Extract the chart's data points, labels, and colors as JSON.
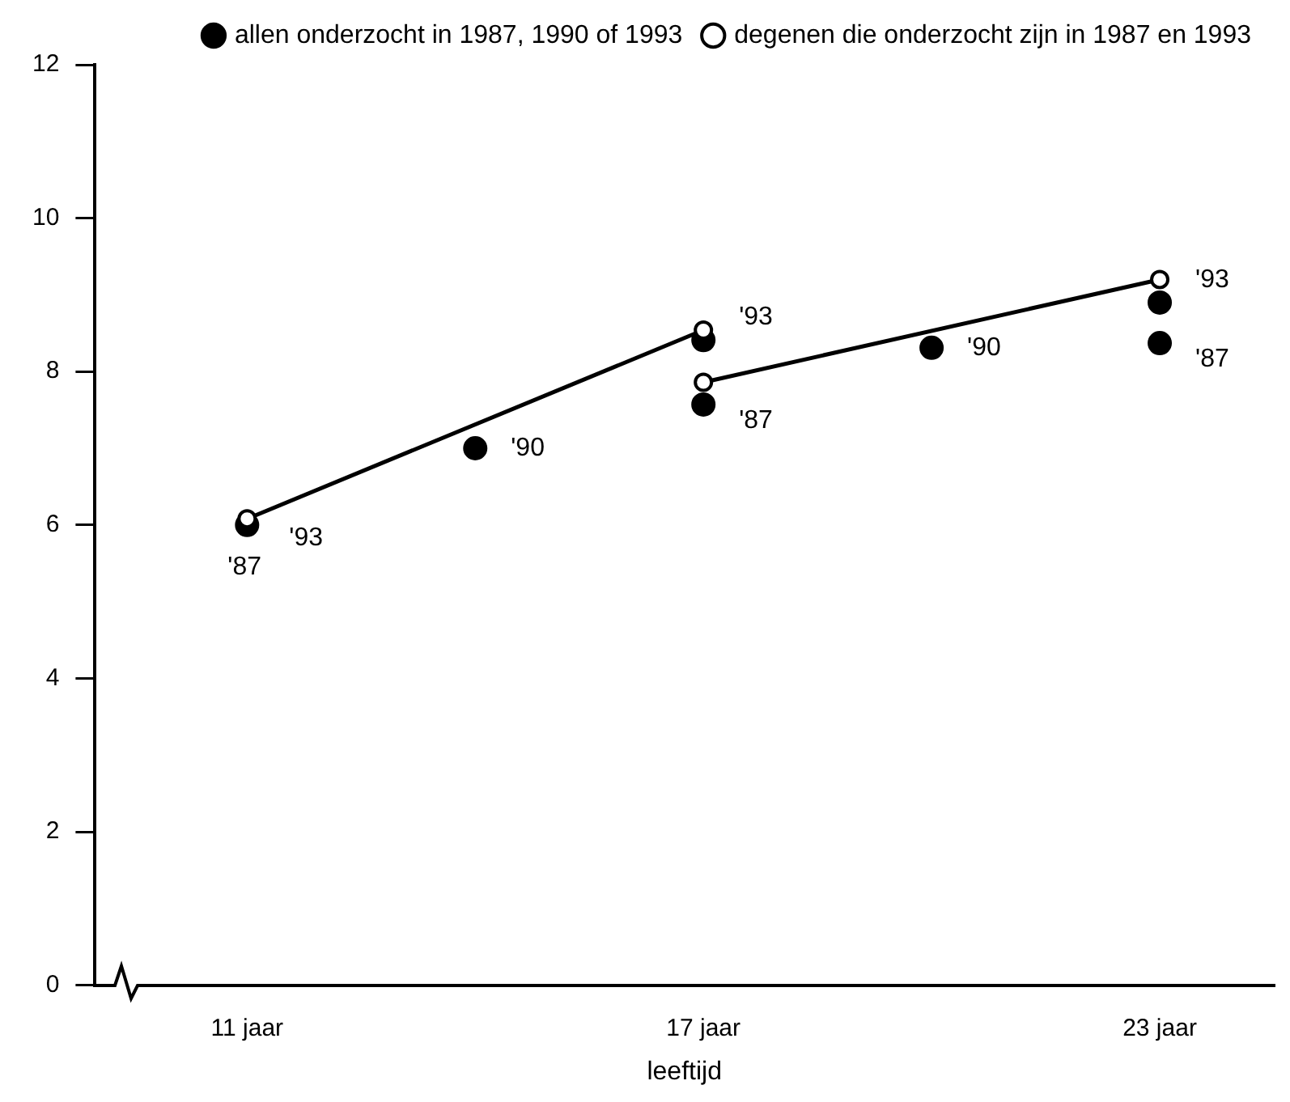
{
  "chart_data": {
    "type": "scatter",
    "xlabel": "leeftijd",
    "xlim": [
      9,
      24.5
    ],
    "xticks": [
      {
        "value": 11,
        "label": "11 jaar"
      },
      {
        "value": 17,
        "label": "17 jaar"
      },
      {
        "value": 23,
        "label": "23 jaar"
      }
    ],
    "ylim": [
      0,
      12
    ],
    "yticks": [
      0,
      2,
      4,
      6,
      8,
      10,
      12
    ],
    "grid": false,
    "legend": "top right",
    "marker": "circle",
    "series": [
      {
        "type": "scatter",
        "name": "allen onderzocht in 1987, 1990 of 1993",
        "color": "#000000",
        "x": [
          11,
          14,
          17,
          17,
          20,
          23,
          23
        ],
        "values": [
          6.0,
          7.0,
          7.57,
          8.41,
          8.31,
          8.37,
          8.9
        ]
      },
      {
        "type": "line",
        "name": "degenen die onderzocht zijn in 1987 en 1993",
        "color": "#000000",
        "x": [
          11,
          17
        ],
        "values": [
          6.08,
          8.54
        ]
      },
      {
        "type": "line",
        "color": "#000000",
        "x": [
          17,
          23
        ],
        "values": [
          7.86,
          9.2
        ]
      }
    ],
    "annotations": [
      {
        "text": "'87",
        "x": 11,
        "y": 6.0
      },
      {
        "text": "'93",
        "x": 11,
        "y": 6.08
      },
      {
        "text": "'90",
        "x": 14,
        "y": 7.0
      },
      {
        "text": "'87",
        "x": 17,
        "y": 7.57
      },
      {
        "text": "'93",
        "x": 17,
        "y": 8.41
      },
      {
        "text": "'90",
        "x": 20,
        "y": 8.31
      },
      {
        "text": "'87",
        "x": 23,
        "y": 8.37
      },
      {
        "text": "'93",
        "x": 23,
        "y": 8.9
      }
    ]
  }
}
